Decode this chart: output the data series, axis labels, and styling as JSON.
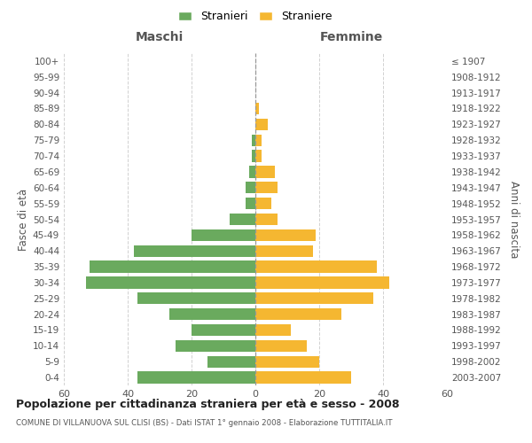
{
  "age_groups": [
    "0-4",
    "5-9",
    "10-14",
    "15-19",
    "20-24",
    "25-29",
    "30-34",
    "35-39",
    "40-44",
    "45-49",
    "50-54",
    "55-59",
    "60-64",
    "65-69",
    "70-74",
    "75-79",
    "80-84",
    "85-89",
    "90-94",
    "95-99",
    "100+"
  ],
  "birth_years": [
    "2003-2007",
    "1998-2002",
    "1993-1997",
    "1988-1992",
    "1983-1987",
    "1978-1982",
    "1973-1977",
    "1968-1972",
    "1963-1967",
    "1958-1962",
    "1953-1957",
    "1948-1952",
    "1943-1947",
    "1938-1942",
    "1933-1937",
    "1928-1932",
    "1923-1927",
    "1918-1922",
    "1913-1917",
    "1908-1912",
    "≤ 1907"
  ],
  "maschi": [
    37,
    15,
    25,
    20,
    27,
    37,
    53,
    52,
    38,
    20,
    8,
    3,
    3,
    2,
    1,
    1,
    0,
    0,
    0,
    0,
    0
  ],
  "femmine": [
    30,
    20,
    16,
    11,
    27,
    37,
    42,
    38,
    18,
    19,
    7,
    5,
    7,
    6,
    2,
    2,
    4,
    1,
    0,
    0,
    0
  ],
  "color_maschi": "#6aaa5e",
  "color_femmine": "#f5b731",
  "title": "Popolazione per cittadinanza straniera per età e sesso - 2008",
  "subtitle": "COMUNE DI VILLANUOVA SUL CLISI (BS) - Dati ISTAT 1° gennaio 2008 - Elaborazione TUTTITALIA.IT",
  "xlabel_left": "Maschi",
  "xlabel_right": "Femmine",
  "ylabel_left": "Fasce di età",
  "ylabel_right": "Anni di nascita",
  "legend_stranieri": "Stranieri",
  "legend_straniere": "Straniere",
  "xlim": 60,
  "background_color": "#ffffff",
  "grid_color": "#cccccc"
}
